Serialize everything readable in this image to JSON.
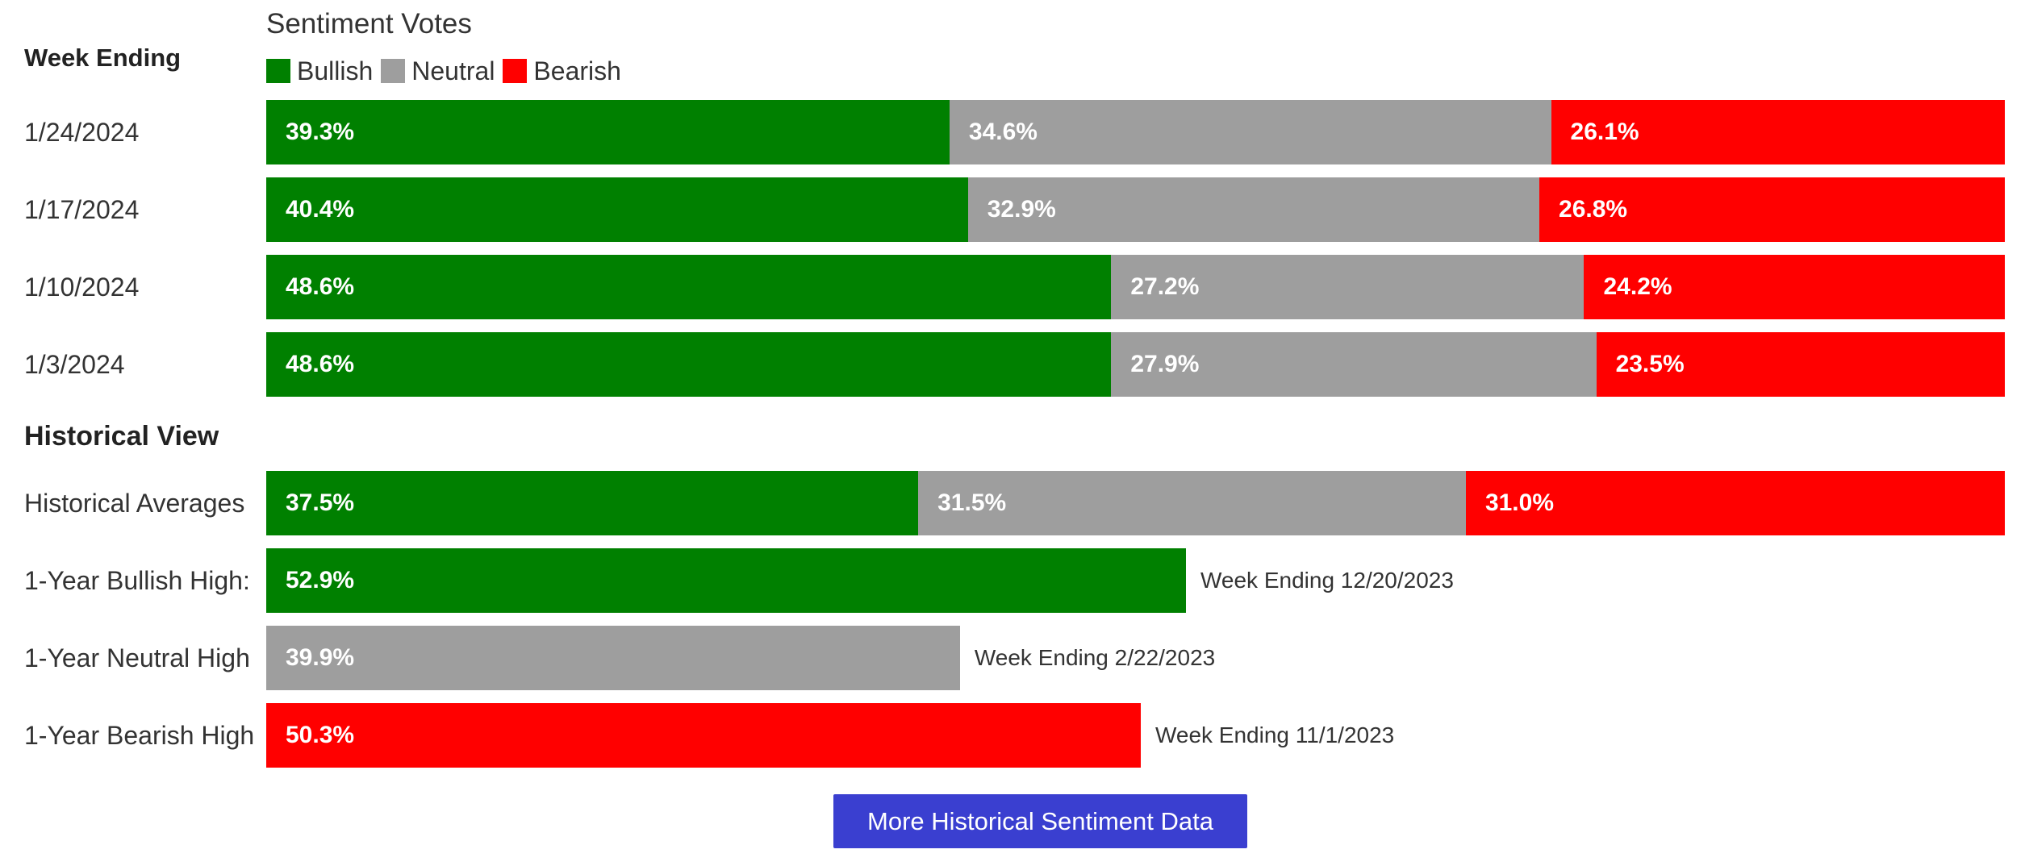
{
  "header": {
    "title": "Sentiment Votes",
    "column_header": "Week Ending",
    "section_title": "Historical View"
  },
  "legend": [
    {
      "label": "Bullish",
      "color": "#008000"
    },
    {
      "label": "Neutral",
      "color": "#9e9e9e"
    },
    {
      "label": "Bearish",
      "color": "#ff0000"
    }
  ],
  "button": {
    "label": "More Historical Sentiment Data"
  },
  "chart_data": [
    {
      "type": "bar",
      "stacked": true,
      "orientation": "horizontal",
      "title": "Sentiment Votes",
      "categories": [
        "1/24/2024",
        "1/17/2024",
        "1/10/2024",
        "1/3/2024"
      ],
      "series": [
        {
          "name": "Bullish",
          "color": "#008000",
          "values": [
            39.3,
            40.4,
            48.6,
            48.6
          ]
        },
        {
          "name": "Neutral",
          "color": "#9e9e9e",
          "values": [
            34.6,
            32.9,
            27.2,
            27.9
          ]
        },
        {
          "name": "Bearish",
          "color": "#ff0000",
          "values": [
            26.1,
            26.8,
            24.2,
            23.5
          ]
        }
      ],
      "value_labels": [
        [
          "39.3%",
          "34.6%",
          "26.1%"
        ],
        [
          "40.4%",
          "32.9%",
          "26.8%"
        ],
        [
          "48.6%",
          "27.2%",
          "24.2%"
        ],
        [
          "48.6%",
          "27.9%",
          "23.5%"
        ]
      ],
      "xlim": [
        0,
        100
      ]
    },
    {
      "type": "bar",
      "stacked": true,
      "orientation": "horizontal",
      "title": "Historical View",
      "categories": [
        "Historical Averages"
      ],
      "series": [
        {
          "name": "Bullish",
          "color": "#008000",
          "values": [
            37.5
          ]
        },
        {
          "name": "Neutral",
          "color": "#9e9e9e",
          "values": [
            31.5
          ]
        },
        {
          "name": "Bearish",
          "color": "#ff0000",
          "values": [
            31.0
          ]
        }
      ],
      "value_labels": [
        [
          "37.5%",
          "31.5%",
          "31.0%"
        ]
      ],
      "xlim": [
        0,
        100
      ]
    },
    {
      "type": "bar",
      "orientation": "horizontal",
      "categories": [
        "1-Year Bullish High:",
        "1-Year Neutral High",
        "1-Year Bearish High"
      ],
      "values": [
        52.9,
        39.9,
        50.3
      ],
      "colors": [
        "#008000",
        "#9e9e9e",
        "#ff0000"
      ],
      "value_labels": [
        "52.9%",
        "39.9%",
        "50.3%"
      ],
      "annotations": [
        "Week Ending 12/20/2023",
        "Week Ending 2/22/2023",
        "Week Ending 11/1/2023"
      ],
      "xlim": [
        0,
        100
      ]
    }
  ]
}
